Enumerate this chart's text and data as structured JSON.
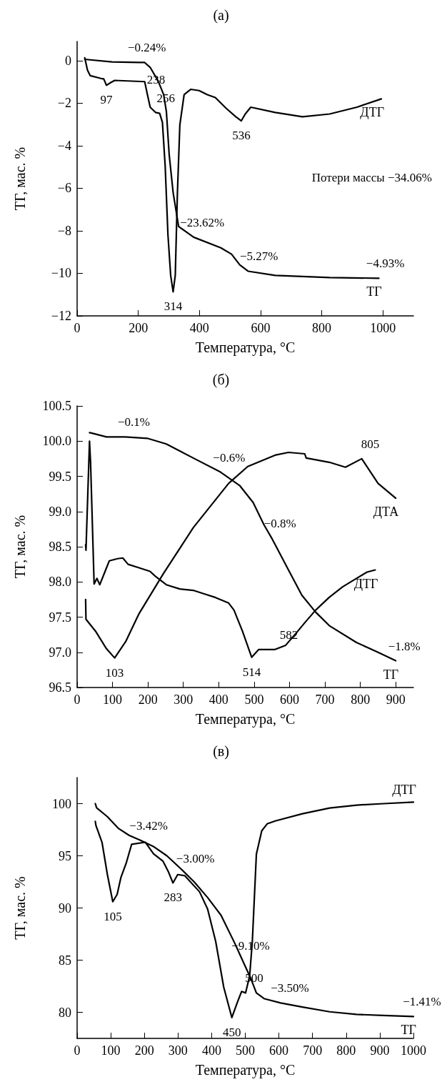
{
  "chart_data": [
    {
      "type": "line",
      "title": "(а)",
      "xlabel": "Температура, °C",
      "ylabel": "ТГ, мас. %",
      "xlim": [
        0,
        1100
      ],
      "xticks": [
        0,
        200,
        400,
        600,
        800,
        1000
      ],
      "ylim": [
        -12,
        0.9
      ],
      "yticks": [
        {
          "value": -12,
          "label": "−12"
        },
        {
          "value": -10,
          "label": "−10"
        },
        {
          "value": -8,
          "label": "−8"
        },
        {
          "value": -6,
          "label": "−6"
        },
        {
          "value": -4,
          "label": "−4"
        },
        {
          "value": -2,
          "label": "−2"
        },
        0
      ],
      "grid": false,
      "marker": "none",
      "line_style": "solid",
      "series": [
        {
          "name": "ТГ",
          "color": "#000000",
          "x": [
            25,
            114,
            203,
            221,
            239,
            265,
            283,
            292,
            301,
            314,
            332,
            381,
            470,
            505,
            532,
            559,
            648,
            826,
            987
          ],
          "values": [
            0.06,
            -0.06,
            -0.09,
            -0.09,
            -0.32,
            -0.96,
            -1.6,
            -2.4,
            -4.4,
            -6.2,
            -7.8,
            -8.3,
            -8.8,
            -9.1,
            -9.6,
            -9.9,
            -10.1,
            -10.2,
            -10.23
          ]
        },
        {
          "name": "ДТГ",
          "color": "#000000",
          "x": [
            25,
            34,
            43,
            78,
            87,
            96,
            110,
            123,
            221,
            230,
            239,
            257,
            270,
            279,
            288,
            297,
            306,
            314,
            321,
            328,
            336,
            350,
            372,
            399,
            426,
            452,
            488,
            519,
            537,
            550,
            568,
            648,
            737,
            826,
            915,
            995
          ],
          "values": [
            0.13,
            -0.45,
            -0.71,
            -0.84,
            -0.86,
            -1.16,
            -1.03,
            -0.93,
            -0.99,
            -1.6,
            -2.19,
            -2.44,
            -2.48,
            -2.9,
            -4.95,
            -8.17,
            -10.1,
            -10.87,
            -10.1,
            -6.24,
            -3.02,
            -1.6,
            -1.35,
            -1.41,
            -1.6,
            -1.74,
            -2.25,
            -2.64,
            -2.83,
            -2.51,
            -2.19,
            -2.44,
            -2.64,
            -2.51,
            -2.19,
            -1.8
          ]
        }
      ],
      "annotations": [
        {
          "text": "−0.24%",
          "x": 200,
          "y": -0.09
        },
        {
          "text": "−23.62%",
          "x": 381,
          "y": -8.3
        },
        {
          "text": "−5.27%",
          "x": 567,
          "y": -9.9
        },
        {
          "text": "−4.93%",
          "x": 980,
          "y": -10.23
        },
        {
          "text": "97",
          "x": 96,
          "y": -1.16
        },
        {
          "text": "238",
          "x": 230,
          "y": -1.6
        },
        {
          "text": "256",
          "x": 262,
          "y": -2.46
        },
        {
          "text": "314",
          "x": 314,
          "y": -10.87
        },
        {
          "text": "536",
          "x": 537,
          "y": -2.83
        },
        "Потери массы −34.06%"
      ]
    },
    {
      "type": "line",
      "title": "(б)",
      "xlabel": "Температура, °C",
      "ylabel": "ТГ, мас. %",
      "xlim": [
        0,
        950
      ],
      "xticks": [
        0,
        100,
        200,
        300,
        400,
        500,
        600,
        700,
        800,
        900
      ],
      "ylim": [
        96.5,
        100.5
      ],
      "yticks": [
        {
          "value": 96.5,
          "label": "96.5"
        },
        {
          "value": 97,
          "label": "97.0"
        },
        {
          "value": 97.5,
          "label": "97.5"
        },
        {
          "value": 98,
          "label": "98.0"
        },
        {
          "value": 98.5,
          "label": "98.5"
        },
        {
          "value": 99,
          "label": "99.0"
        },
        {
          "value": 99.5,
          "label": "99.5"
        },
        {
          "value": 100,
          "label": "100.0"
        },
        {
          "value": 100.5,
          "label": "100.5"
        }
      ],
      "grid": false,
      "marker": "none",
      "line_style": "solid",
      "series": [
        {
          "name": "ТГ",
          "color": "#000000",
          "x": [
            35,
            44,
            83,
            136,
            198,
            252,
            328,
            405,
            459,
            497,
            528,
            551,
            597,
            635,
            674,
            712,
            789,
            850,
            900
          ],
          "values": [
            100.12,
            100.11,
            100.06,
            100.06,
            100.04,
            99.96,
            99.76,
            99.56,
            99.37,
            99.13,
            98.81,
            98.61,
            98.17,
            97.81,
            97.57,
            97.38,
            97.14,
            97.0,
            96.88
          ]
        },
        {
          "name": "ДТА",
          "color": "#000000",
          "x": [
            24,
            25,
            52,
            83,
            106,
            137,
            175,
            244,
            328,
            428,
            482,
            559,
            597,
            643,
            647,
            712,
            758,
            804,
            850,
            900
          ],
          "values": [
            97.75,
            97.47,
            97.3,
            97.05,
            96.92,
            97.15,
            97.55,
            98.12,
            98.77,
            99.4,
            99.64,
            99.8,
            99.84,
            99.82,
            99.76,
            99.7,
            99.63,
            99.75,
            99.4,
            99.19
          ]
        },
        {
          "name": "ДТГ",
          "color": "#000000",
          "x": [
            24,
            25,
            35,
            38,
            48,
            56,
            64,
            79,
            91,
            114,
            129,
            144,
            175,
            206,
            221,
            252,
            290,
            328,
            359,
            390,
            428,
            443,
            467,
            493,
            513,
            559,
            589,
            620,
            643,
            674,
            712,
            750,
            789,
            819,
            842
          ],
          "values": [
            98.53,
            98.45,
            100.0,
            99.7,
            97.97,
            98.05,
            97.96,
            98.15,
            98.3,
            98.33,
            98.34,
            98.25,
            98.2,
            98.15,
            98.08,
            97.96,
            97.9,
            97.88,
            97.83,
            97.78,
            97.7,
            97.6,
            97.3,
            96.93,
            97.04,
            97.04,
            97.1,
            97.28,
            97.42,
            97.6,
            97.78,
            97.93,
            98.05,
            98.14,
            98.17
          ]
        }
      ],
      "annotations": [
        {
          "text": "−0.1%",
          "x": 136,
          "y": 100.06
        },
        {
          "text": "−0.6%",
          "x": 405,
          "y": 99.56
        },
        {
          "text": "−0.8%",
          "x": 549,
          "y": 98.62
        },
        {
          "text": "−1.8%",
          "x": 900,
          "y": 96.88
        },
        {
          "text": "103",
          "x": 106,
          "y": 96.92
        },
        {
          "text": "514",
          "x": 493,
          "y": 96.93
        },
        {
          "text": "582",
          "x": 574,
          "y": 97.04
        },
        {
          "text": "805",
          "x": 804,
          "y": 99.75
        }
      ]
    },
    {
      "type": "line",
      "title": "(в)",
      "xlabel": "Температура, °C",
      "ylabel": "ТГ, мас. %",
      "xlim": [
        0,
        1000
      ],
      "xticks": [
        0,
        100,
        200,
        300,
        400,
        500,
        600,
        700,
        800,
        900,
        1000
      ],
      "ylim": [
        77.5,
        102.5
      ],
      "yticks": [
        80,
        85,
        90,
        95,
        100
      ],
      "grid": false,
      "marker": "none",
      "line_style": "solid",
      "series": [
        {
          "name": "ТГ",
          "color": "#000000",
          "x": [
            54,
            58,
            90,
            122,
            155,
            187,
            229,
            267,
            308,
            348,
            388,
            428,
            469,
            493,
            517,
            533,
            557,
            605,
            670,
            751,
            830,
            910,
            1000
          ],
          "values": [
            100,
            99.6,
            98.75,
            97.65,
            96.95,
            96.5,
            95.85,
            95.0,
            93.77,
            92.5,
            91.0,
            89.3,
            86.6,
            84.9,
            83.2,
            81.86,
            81.3,
            80.9,
            80.5,
            80.05,
            79.8,
            79.7,
            79.6
          ]
        },
        {
          "name": "ДТГ",
          "color": "#000000",
          "x": [
            54,
            56,
            74,
            90,
            106,
            119,
            130,
            146,
            162,
            203,
            227,
            255,
            271,
            285,
            299,
            320,
            364,
            388,
            412,
            436,
            460,
            477,
            489,
            501,
            513,
            521,
            533,
            549,
            565,
            589,
            670,
            751,
            831,
            911,
            1000
          ],
          "values": [
            98.3,
            97.9,
            96.3,
            93.2,
            90.6,
            91.3,
            92.9,
            94.3,
            96.1,
            96.3,
            95.2,
            94.5,
            93.5,
            92.4,
            93.2,
            93.1,
            91.55,
            89.9,
            86.8,
            82.4,
            79.5,
            81.0,
            82.0,
            81.86,
            83.5,
            86.8,
            95.15,
            97.4,
            98.06,
            98.34,
            99.03,
            99.58,
            99.86,
            100.0,
            100.14
          ]
        }
      ],
      "annotations": [
        {
          "text": "−3.42%",
          "x": 187,
          "y": 96.5
        },
        {
          "text": "−3.00%",
          "x": 326,
          "y": 93.3
        },
        {
          "text": "−9.10%",
          "x": 490,
          "y": 85.0
        },
        {
          "text": "−3.50%",
          "x": 607,
          "y": 80.9
        },
        {
          "text": "−1.41%",
          "x": 1000,
          "y": 79.6
        },
        {
          "text": "105",
          "x": 106,
          "y": 90.6
        },
        {
          "text": "283",
          "x": 285,
          "y": 92.4
        },
        {
          "text": "450",
          "x": 460,
          "y": 79.5
        },
        {
          "text": "500",
          "x": 501,
          "y": 81.86
        }
      ]
    }
  ]
}
